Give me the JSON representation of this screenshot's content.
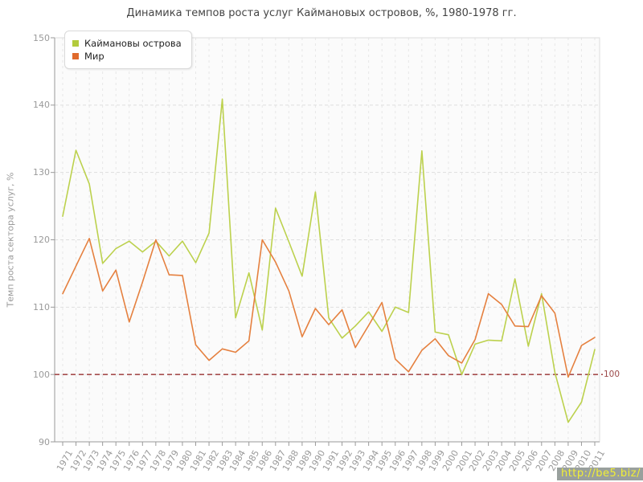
{
  "title": "Динамика темпов роста услуг Каймановых островов, %, 1980-1978 гг.",
  "watermark": "http://be5.biz/",
  "legend": {
    "items": [
      {
        "label": "Каймановы острова",
        "color": "#b3cb3c"
      },
      {
        "label": "Мир",
        "color": "#e06a2c"
      }
    ]
  },
  "y_axis": {
    "label": "Темп роста сектора услуг, %",
    "ticks": [
      90,
      100,
      110,
      120,
      130,
      140,
      150
    ]
  },
  "reference_line": {
    "value": 100,
    "label": "100",
    "color": "#a64d4d"
  },
  "colors": {
    "grid_h": "#dedede",
    "grid_v": "#e7e7e7",
    "axis": "#9a9a9a",
    "plot_border": "#dcdcdc",
    "plot_bg": "#fbfbfb",
    "cayman_line": "#bcd14d",
    "world_line": "#e5803f"
  },
  "chart_data": {
    "type": "line",
    "x": [
      1971,
      1972,
      1973,
      1974,
      1975,
      1976,
      1977,
      1978,
      1979,
      1980,
      1981,
      1982,
      1983,
      1984,
      1985,
      1986,
      1987,
      1988,
      1989,
      1990,
      1991,
      1992,
      1993,
      1994,
      1995,
      1996,
      1997,
      1998,
      1999,
      2000,
      2001,
      2002,
      2003,
      2004,
      2005,
      2006,
      2007,
      2008,
      2009,
      2010,
      2011
    ],
    "series": [
      {
        "name": "Каймановы острова",
        "color": "#bcd14d",
        "values": [
          123.5,
          133.3,
          128.3,
          116.5,
          118.7,
          119.8,
          118.2,
          119.8,
          117.6,
          119.8,
          116.6,
          121.0,
          140.9,
          108.4,
          115.1,
          106.6,
          124.7,
          119.7,
          114.6,
          127.1,
          108.4,
          105.4,
          107.2,
          109.3,
          106.4,
          110.0,
          109.2,
          133.2,
          106.3,
          105.9,
          100.0,
          104.5,
          105.1,
          105.0,
          114.2,
          104.2,
          112.0,
          100.3,
          92.9,
          95.9,
          103.7
        ]
      },
      {
        "name": "Мир",
        "color": "#e5803f",
        "values": [
          112.0,
          116.1,
          120.2,
          112.4,
          115.5,
          107.8,
          113.7,
          120.0,
          114.8,
          114.7,
          104.4,
          102.1,
          103.8,
          103.3,
          105.0,
          120.0,
          116.7,
          112.4,
          105.6,
          109.8,
          107.4,
          109.6,
          104.0,
          107.3,
          110.7,
          102.3,
          100.4,
          103.6,
          105.3,
          102.8,
          101.7,
          105.2,
          112.0,
          110.4,
          107.2,
          107.1,
          111.7,
          109.1,
          99.6,
          104.3,
          105.5
        ]
      }
    ],
    "title": "Динамика темпов роста услуг Каймановых островов, %, 1980-1978 гг.",
    "xlabel": "",
    "ylabel": "Темп роста сектора услуг, %",
    "ylim": [
      90,
      150
    ],
    "grid": true,
    "legend_position": "top-left",
    "reference_line_y": 100
  }
}
